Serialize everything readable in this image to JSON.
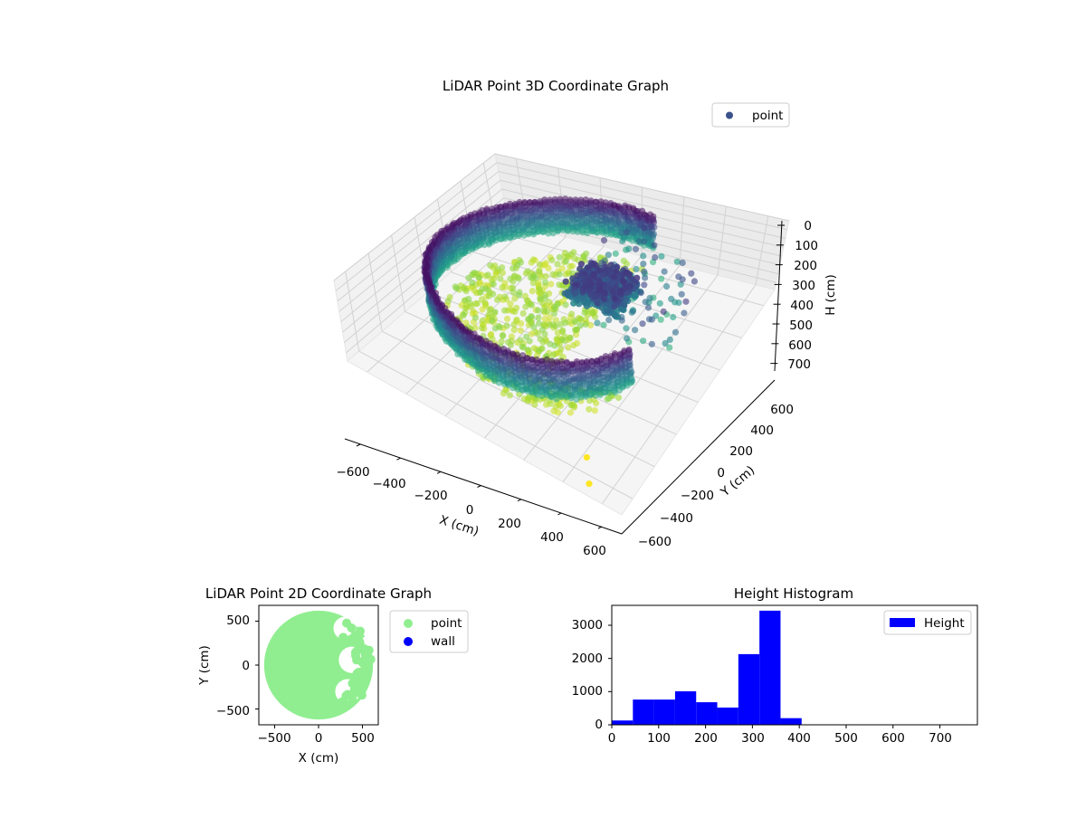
{
  "chart_data": [
    {
      "type": "scatter",
      "title": "LiDAR Point 3D Coordinate Graph",
      "xlabel": "X (cm)",
      "ylabel": "Y (cm)",
      "zlabel": "H (cm)",
      "xlim": [
        -700,
        700
      ],
      "ylim": [
        -700,
        700
      ],
      "zlim": [
        0,
        780
      ],
      "z_inverted": true,
      "xticks": [
        "−600",
        "−400",
        "−200",
        "0",
        "200",
        "400",
        "600"
      ],
      "yticks": [
        "−600",
        "−400",
        "−200",
        "0",
        "200",
        "400",
        "600"
      ],
      "zticks": [
        "0",
        "100",
        "200",
        "300",
        "400",
        "500",
        "600",
        "700"
      ],
      "grid": true,
      "colormap": "viridis",
      "legend": {
        "placement": "upper-right",
        "entries": [
          {
            "label": "point",
            "color": "#3b528b"
          }
        ]
      },
      "point_cloud": {
        "ring_radius": 560,
        "ring_angle_span_deg": [
          75,
          335
        ],
        "ring_height_top": 20,
        "ring_height_bottom": 390,
        "object_cluster_center": [
          150,
          120,
          100
        ],
        "outliers": [
          [
            420,
            -520,
            780
          ],
          [
            500,
            -640,
            780
          ]
        ]
      }
    },
    {
      "type": "scatter",
      "title": "LiDAR Point 2D Coordinate Graph",
      "xlabel": "X (cm)",
      "ylabel": "Y (cm)",
      "xlim": [
        -680,
        680
      ],
      "ylim": [
        -680,
        680
      ],
      "xticks": [
        "−500",
        "0",
        "500"
      ],
      "yticks": [
        "500",
        "0",
        "−500"
      ],
      "legend": {
        "placement": "outside-right",
        "entries": [
          {
            "label": "point",
            "color": "#90ee90"
          },
          {
            "label": "wall",
            "color": "#0000ff"
          }
        ]
      },
      "disk_radius": 620,
      "gaps": [
        {
          "x": 300,
          "y": 420,
          "r": 130
        },
        {
          "x": 380,
          "y": 60,
          "r": 150
        },
        {
          "x": 330,
          "y": -300,
          "r": 140
        },
        {
          "x": 560,
          "y": 250,
          "r": 80
        }
      ]
    },
    {
      "type": "bar",
      "title": "Height Histogram",
      "xlim": [
        0,
        780
      ],
      "ylim": [
        0,
        3600
      ],
      "xticks": [
        "0",
        "100",
        "200",
        "300",
        "400",
        "500",
        "600",
        "700"
      ],
      "yticks": [
        "0",
        "1000",
        "2000",
        "3000"
      ],
      "bin_edges": [
        0,
        45,
        90,
        135,
        180,
        225,
        270,
        315,
        360,
        405,
        450,
        495,
        540,
        585,
        630,
        675,
        720,
        765
      ],
      "values": [
        130,
        760,
        760,
        1010,
        680,
        520,
        2130,
        3440,
        200,
        12,
        5,
        3,
        2,
        2,
        1,
        1,
        1
      ],
      "color": "#0000ff",
      "legend": {
        "placement": "upper-right",
        "entries": [
          {
            "label": "Height",
            "color": "#0000ff"
          }
        ]
      }
    }
  ]
}
